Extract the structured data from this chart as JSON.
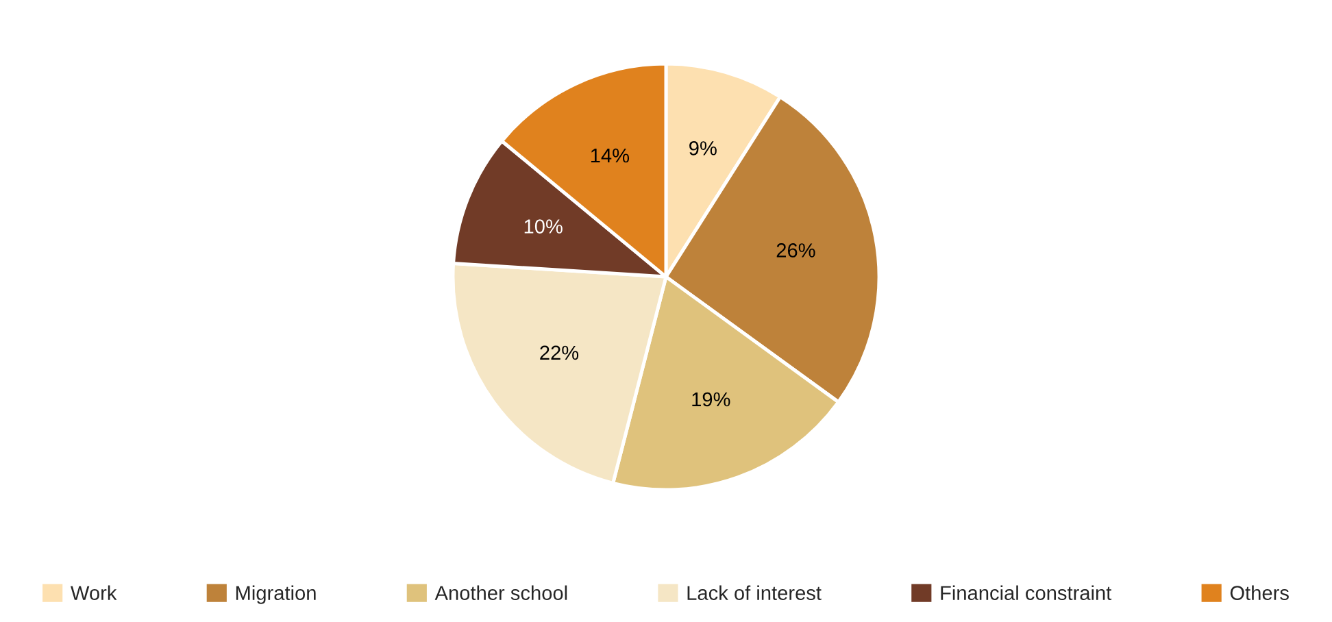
{
  "chart_data": {
    "type": "pie",
    "categories": [
      "Work",
      "Migration",
      "Another school",
      "Lack of interest",
      "Financial constraint",
      "Others"
    ],
    "values": [
      9,
      26,
      19,
      22,
      10,
      14
    ],
    "colors": [
      "#fde0b0",
      "#be823a",
      "#dfc27c",
      "#f5e6c5",
      "#713b27",
      "#e0821e"
    ],
    "value_labels": [
      "9%",
      "26%",
      "19%",
      "22%",
      "10%",
      "14%"
    ],
    "legend": "bottom"
  }
}
